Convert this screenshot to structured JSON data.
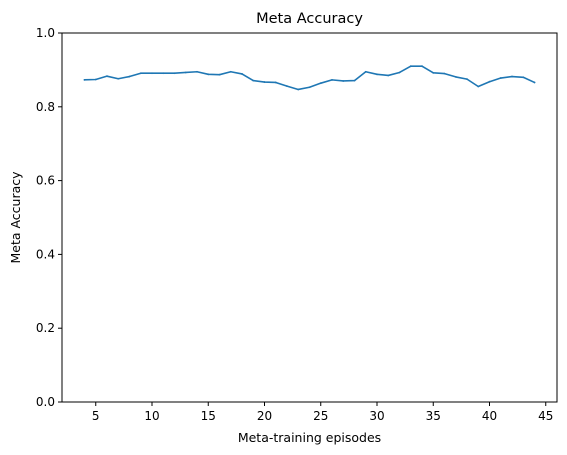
{
  "chart_data": {
    "type": "line",
    "title": "Meta Accuracy",
    "xlabel": "Meta-training episodes",
    "ylabel": "Meta Accuracy",
    "xlim": [
      2.0,
      46.0
    ],
    "ylim": [
      0.0,
      1.0
    ],
    "xticks": [
      5,
      10,
      15,
      20,
      25,
      30,
      35,
      40,
      45
    ],
    "yticks": [
      0.0,
      0.2,
      0.4,
      0.6,
      0.8,
      1.0
    ],
    "grid": false,
    "series": [
      {
        "color": "#1f77b4",
        "x": [
          4,
          5,
          6,
          7,
          8,
          9,
          10,
          11,
          12,
          13,
          14,
          15,
          16,
          17,
          18,
          19,
          20,
          21,
          22,
          23,
          24,
          25,
          26,
          27,
          28,
          29,
          30,
          31,
          32,
          33,
          34,
          35,
          36,
          37,
          38,
          39,
          40,
          41,
          42,
          43,
          44
        ],
        "y": [
          0.873,
          0.874,
          0.883,
          0.876,
          0.882,
          0.891,
          0.891,
          0.891,
          0.891,
          0.893,
          0.895,
          0.888,
          0.887,
          0.895,
          0.889,
          0.871,
          0.867,
          0.866,
          0.856,
          0.847,
          0.853,
          0.864,
          0.873,
          0.87,
          0.871,
          0.895,
          0.888,
          0.885,
          0.893,
          0.91,
          0.91,
          0.892,
          0.89,
          0.881,
          0.875,
          0.855,
          0.868,
          0.878,
          0.882,
          0.88,
          0.866
        ]
      }
    ]
  }
}
